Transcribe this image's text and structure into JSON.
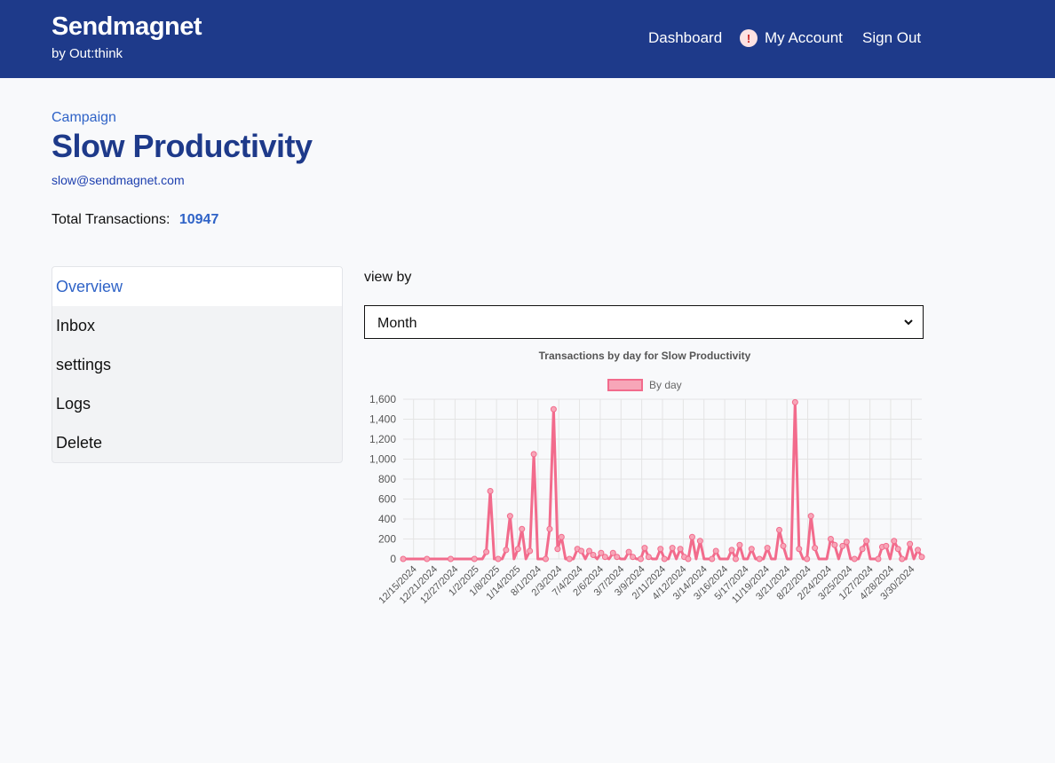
{
  "header": {
    "brand": "Sendmagnet",
    "brand_sub": "by Out:think",
    "nav": {
      "dashboard": "Dashboard",
      "account": "My Account",
      "signout": "Sign Out"
    },
    "alert_glyph": "!"
  },
  "page": {
    "crumb": "Campaign",
    "title": "Slow Productivity",
    "email": "slow@sendmagnet.com",
    "total_label": "Total Transactions:",
    "total_value": "10947"
  },
  "sidenav": {
    "items": [
      {
        "label": "Overview",
        "active": true
      },
      {
        "label": "Inbox"
      },
      {
        "label": "settings"
      },
      {
        "label": "Logs"
      },
      {
        "label": "Delete"
      }
    ]
  },
  "filters": {
    "view_by_label": "view by",
    "selected": "Month"
  },
  "colors": {
    "header_bg": "#1e3a8a",
    "accent": "#2f63c7",
    "line": "#f26b8c",
    "legend_fill": "#f7a6b8"
  },
  "chart_data": {
    "type": "line",
    "title": "Transactions by day for Slow Productivity",
    "legend": "By day",
    "legend_position": "top",
    "grid": true,
    "ylim": [
      0,
      1600
    ],
    "y_ticks": [
      "0",
      "200",
      "400",
      "600",
      "800",
      "1,000",
      "1,200",
      "1,400",
      "1,600"
    ],
    "x_tick_labels": [
      "12/15/2024",
      "12/21/2024",
      "12/27/2024",
      "1/2/2025",
      "1/8/2025",
      "1/14/2025",
      "8/1/2024",
      "2/3/2024",
      "7/4/2024",
      "2/6/2024",
      "3/7/2024",
      "3/9/2024",
      "2/11/2024",
      "4/12/2024",
      "3/14/2024",
      "3/16/2024",
      "5/17/2024",
      "11/19/2024",
      "3/21/2024",
      "8/22/2024",
      "2/24/2024",
      "3/25/2024",
      "1/27/2024",
      "4/28/2024",
      "3/30/2024"
    ],
    "series": [
      {
        "name": "By day",
        "values": [
          0,
          0,
          0,
          0,
          0,
          0,
          0,
          0,
          0,
          0,
          0,
          0,
          0,
          0,
          0,
          0,
          0,
          0,
          0,
          0,
          0,
          70,
          680,
          0,
          0,
          0,
          90,
          430,
          0,
          100,
          300,
          0,
          80,
          1050,
          0,
          0,
          0,
          300,
          1500,
          100,
          220,
          0,
          0,
          0,
          100,
          80,
          0,
          80,
          40,
          0,
          60,
          20,
          0,
          60,
          20,
          0,
          0,
          70,
          20,
          0,
          0,
          110,
          20,
          0,
          0,
          100,
          0,
          0,
          110,
          0,
          100,
          20,
          0,
          220,
          0,
          180,
          0,
          0,
          0,
          80,
          0,
          0,
          0,
          90,
          0,
          140,
          0,
          0,
          100,
          0,
          0,
          0,
          110,
          0,
          0,
          290,
          130,
          0,
          0,
          1570,
          100,
          0,
          0,
          430,
          110,
          0,
          0,
          0,
          200,
          140,
          0,
          130,
          170,
          0,
          0,
          0,
          100,
          180,
          0,
          0,
          0,
          120,
          130,
          0,
          180,
          100,
          0,
          0,
          150,
          0,
          90,
          20
        ]
      }
    ]
  }
}
